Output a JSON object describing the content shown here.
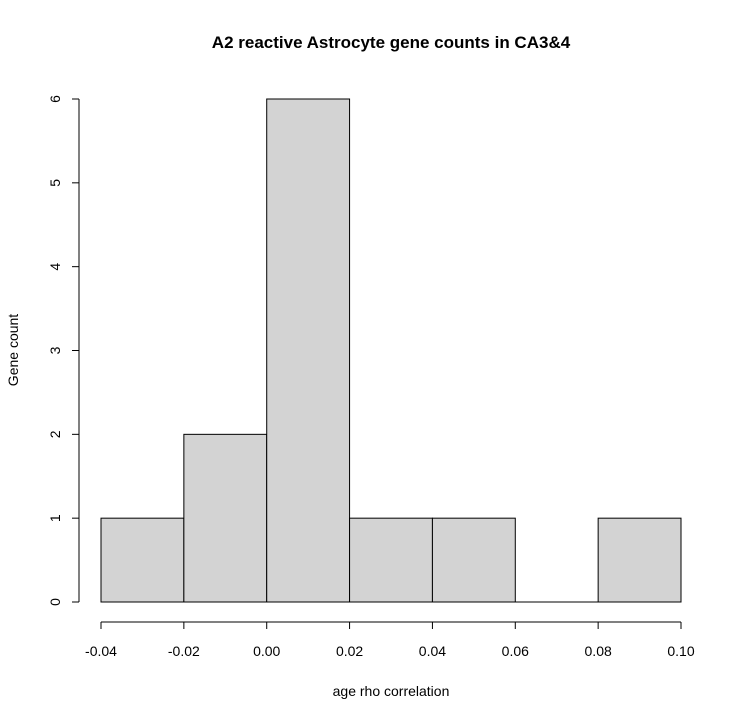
{
  "chart_data": {
    "type": "bar",
    "subtype": "histogram",
    "title": "A2 reactive Astrocyte gene counts in CA3&4",
    "xlabel": "age rho correlation",
    "ylabel": "Gene count",
    "bins": [
      {
        "start": -0.04,
        "end": -0.02,
        "count": 1
      },
      {
        "start": -0.02,
        "end": 0.0,
        "count": 2
      },
      {
        "start": 0.0,
        "end": 0.02,
        "count": 6
      },
      {
        "start": 0.02,
        "end": 0.04,
        "count": 1
      },
      {
        "start": 0.04,
        "end": 0.06,
        "count": 1
      },
      {
        "start": 0.06,
        "end": 0.08,
        "count": 0
      },
      {
        "start": 0.08,
        "end": 0.1,
        "count": 1
      }
    ],
    "xlim": [
      -0.04,
      0.1
    ],
    "ylim": [
      0,
      6
    ],
    "x_ticks": [
      "-0.04",
      "-0.02",
      "0.00",
      "0.02",
      "0.04",
      "0.06",
      "0.08",
      "0.10"
    ],
    "x_tick_values": [
      -0.04,
      -0.02,
      0.0,
      0.02,
      0.04,
      0.06,
      0.08,
      0.1
    ],
    "y_ticks": [
      "0",
      "1",
      "2",
      "3",
      "4",
      "5",
      "6"
    ],
    "y_tick_values": [
      0,
      1,
      2,
      3,
      4,
      5,
      6
    ],
    "bar_fill": "#d3d3d3",
    "bar_stroke": "#000000",
    "grid": false,
    "legend": "none"
  }
}
